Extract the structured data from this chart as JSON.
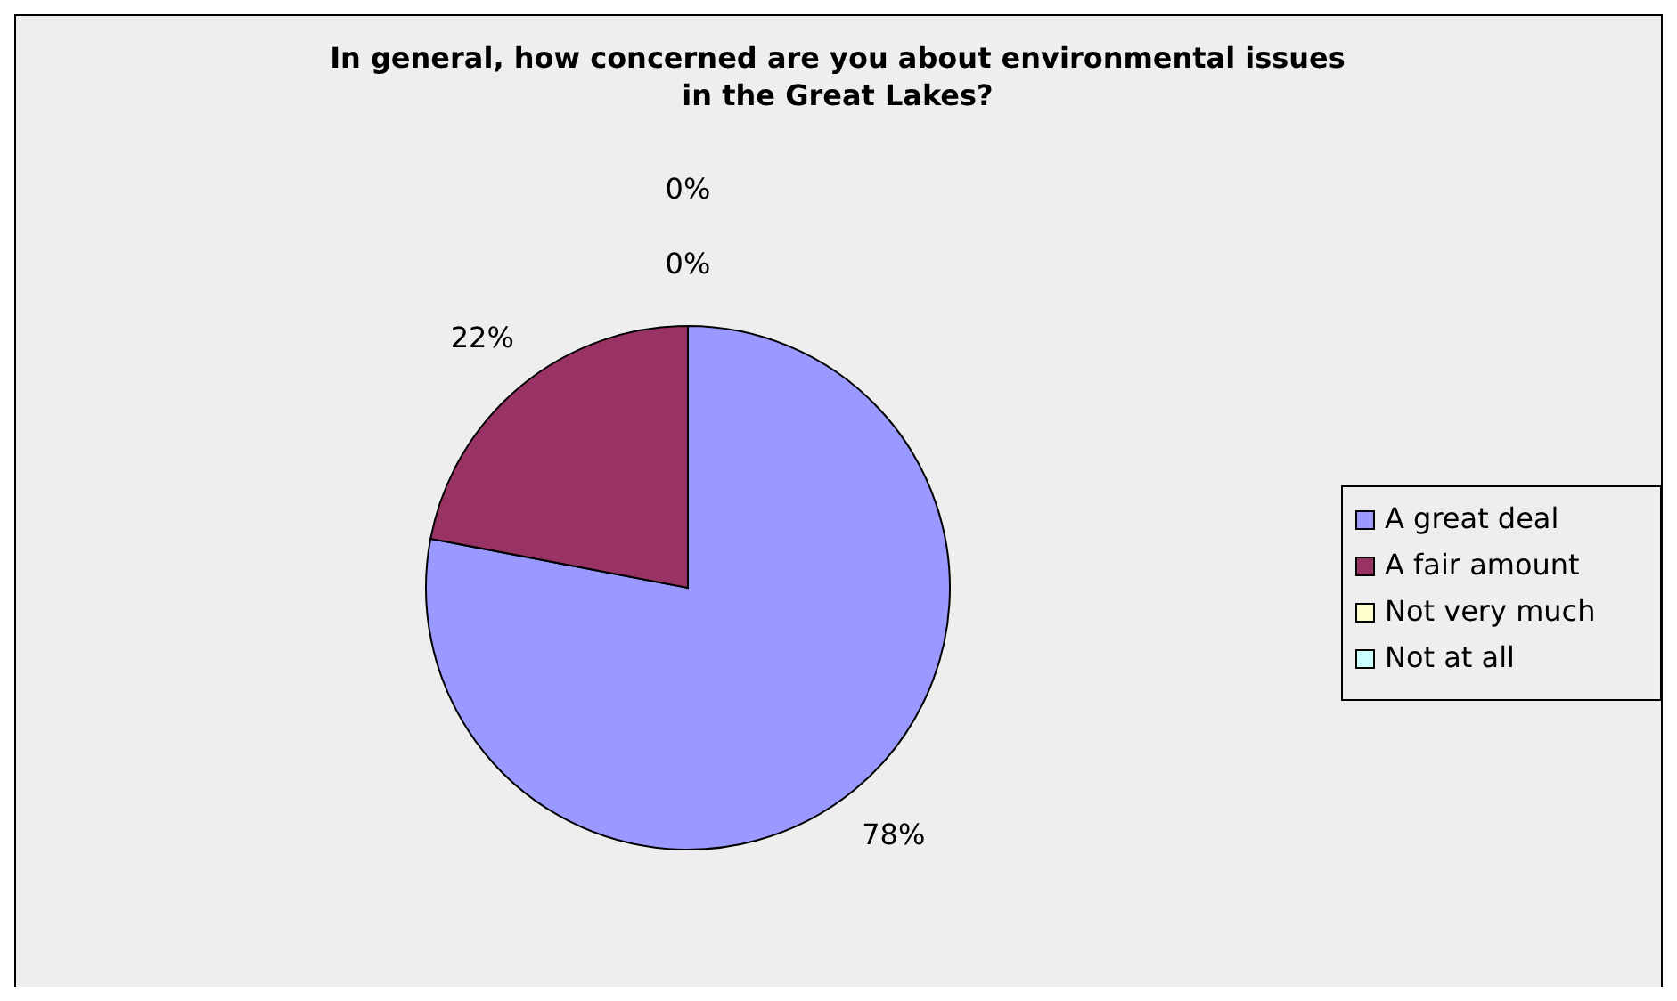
{
  "chart_data": {
    "type": "pie",
    "title": "In general, how concerned are you about environmental issues in the Great Lakes?",
    "categories": [
      "A great deal",
      "A fair amount",
      "Not very much",
      "Not at all"
    ],
    "values": [
      78,
      22,
      0,
      0
    ],
    "colors": [
      "#9999ff",
      "#993366",
      "#ffffcc",
      "#ccffff"
    ],
    "value_labels": [
      "78%",
      "22%",
      "0%",
      "0%"
    ],
    "legend": "right"
  }
}
